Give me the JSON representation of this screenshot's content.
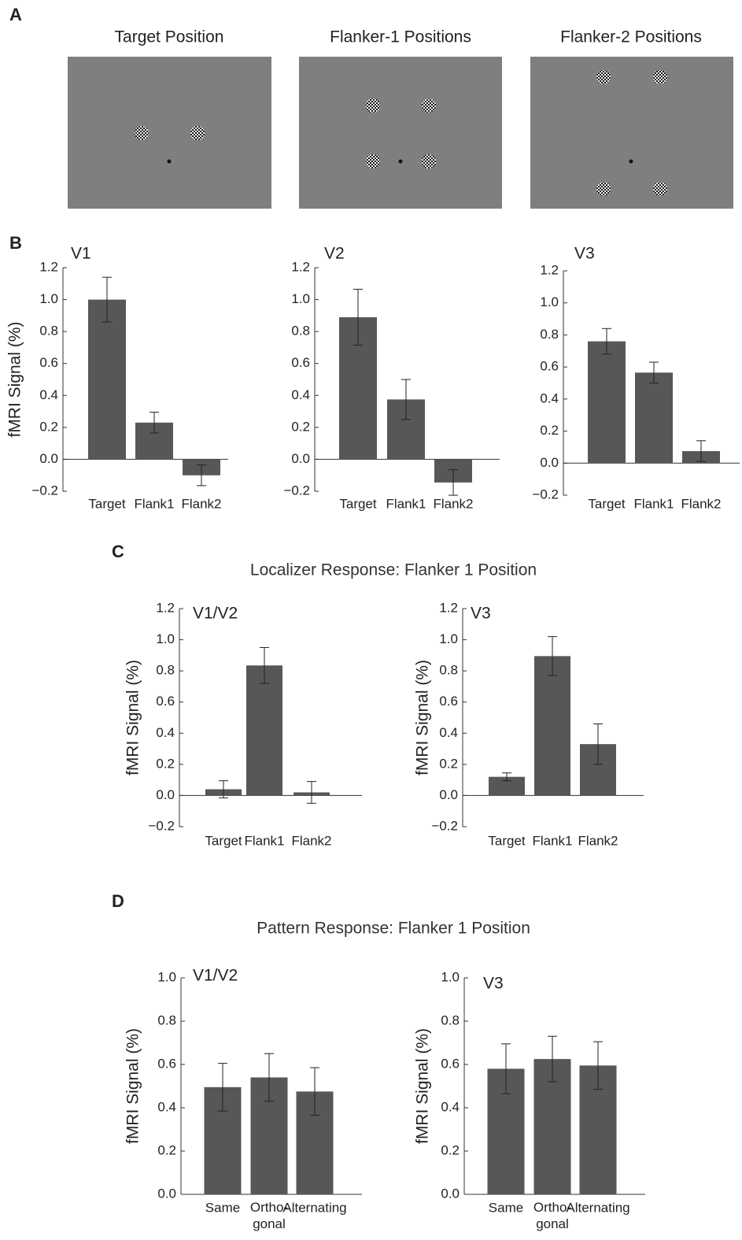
{
  "panel_labels": [
    "A",
    "B",
    "C",
    "D"
  ],
  "stimuli": [
    {
      "title": "Target Position"
    },
    {
      "title": "Flanker-1 Positions"
    },
    {
      "title": "Flanker-2 Positions"
    }
  ],
  "section_titles": [
    "Localizer Response: Flanker 1 Position",
    "Pattern Response: Flanker 1 Position"
  ],
  "chart_data": [
    {
      "type": "bar",
      "title": "V1",
      "ylabel": "fMRI Signal (%)",
      "categories": [
        "Target",
        "Flank1",
        "Flank2"
      ],
      "values": [
        1.0,
        0.23,
        -0.1
      ],
      "errors": [
        0.14,
        0.065,
        0.065
      ],
      "color": "#575757",
      "ylim": [
        -0.2,
        1.2
      ],
      "yticks": [
        {
          "value": -0.2,
          "label": "−0.2"
        },
        {
          "value": 0,
          "label": "0.0"
        },
        0.2,
        0.4,
        0.6,
        0.8,
        {
          "value": 1,
          "label": "1.0"
        },
        1.2
      ]
    },
    {
      "type": "bar",
      "title": "V2",
      "categories": [
        "Target",
        "Flank1",
        "Flank2"
      ],
      "values": [
        0.89,
        0.375,
        -0.145
      ],
      "errors": [
        0.175,
        0.125,
        0.08
      ],
      "color": "#575757",
      "ylim": [
        -0.2,
        1.2
      ],
      "yticks": [
        {
          "value": -0.2,
          "label": "−0.2"
        },
        {
          "value": 0,
          "label": "0.0"
        },
        0.2,
        0.4,
        0.6,
        0.8,
        {
          "value": 1,
          "label": "1.0"
        },
        1.2
      ]
    },
    {
      "type": "bar",
      "title": "V3",
      "categories": [
        "Target",
        "Flank1",
        "Flank2"
      ],
      "values": [
        0.76,
        0.565,
        0.075
      ],
      "errors": [
        0.08,
        0.065,
        0.065
      ],
      "color": "#575757",
      "ylim": [
        -0.2,
        1.2
      ],
      "yticks": [
        {
          "value": -0.2,
          "label": "−0.2"
        },
        {
          "value": 0,
          "label": "0.0"
        },
        0.2,
        0.4,
        0.6,
        0.8,
        {
          "value": 1,
          "label": "1.0"
        },
        1.2
      ]
    },
    {
      "type": "bar",
      "title": "V1/V2",
      "ylabel": "fMRI Signal (%)",
      "categories": [
        "Target",
        "Flank1",
        "Flank2"
      ],
      "values": [
        0.04,
        0.835,
        0.02
      ],
      "errors": [
        0.055,
        0.115,
        0.07
      ],
      "color": "#575757",
      "ylim": [
        -0.2,
        1.2
      ],
      "yticks": [
        {
          "value": -0.2,
          "label": "−0.2"
        },
        {
          "value": 0,
          "label": "0.0"
        },
        0.2,
        0.4,
        0.6,
        0.8,
        {
          "value": 1,
          "label": "1.0"
        },
        1.2
      ]
    },
    {
      "type": "bar",
      "title": "V3",
      "ylabel": "fMRI Signal (%)",
      "categories": [
        "Target",
        "Flank1",
        "Flank2"
      ],
      "values": [
        0.12,
        0.895,
        0.33
      ],
      "errors": [
        0.025,
        0.125,
        0.13
      ],
      "color": "#575757",
      "ylim": [
        -0.2,
        1.2
      ],
      "yticks": [
        {
          "value": -0.2,
          "label": "−0.2"
        },
        {
          "value": 0,
          "label": "0.0"
        },
        0.2,
        0.4,
        0.6,
        0.8,
        {
          "value": 1,
          "label": "1.0"
        },
        1.2
      ]
    },
    {
      "type": "bar",
      "title": "V1/V2",
      "ylabel": "fMRI Signal (%)",
      "categories": [
        "Same",
        "Ortho-\ngonal",
        "Alternating"
      ],
      "values": [
        0.495,
        0.54,
        0.475
      ],
      "errors": [
        0.11,
        0.11,
        0.11
      ],
      "color": "#575757",
      "ylim": [
        0,
        1
      ],
      "yticks": [
        {
          "value": 0,
          "label": "0.0"
        },
        0.2,
        0.4,
        0.6,
        0.8,
        {
          "value": 1,
          "label": "1.0"
        }
      ]
    },
    {
      "type": "bar",
      "title": "V3",
      "ylabel": "fMRI Signal (%)",
      "categories": [
        "Same",
        "Ortho-\ngonal",
        "Alternating"
      ],
      "values": [
        0.58,
        0.625,
        0.595
      ],
      "errors": [
        0.115,
        0.105,
        0.11
      ],
      "color": "#575757",
      "ylim": [
        0,
        1
      ],
      "yticks": [
        {
          "value": 0,
          "label": "0.0"
        },
        0.2,
        0.4,
        0.6,
        0.8,
        {
          "value": 1,
          "label": "1.0"
        }
      ]
    }
  ]
}
